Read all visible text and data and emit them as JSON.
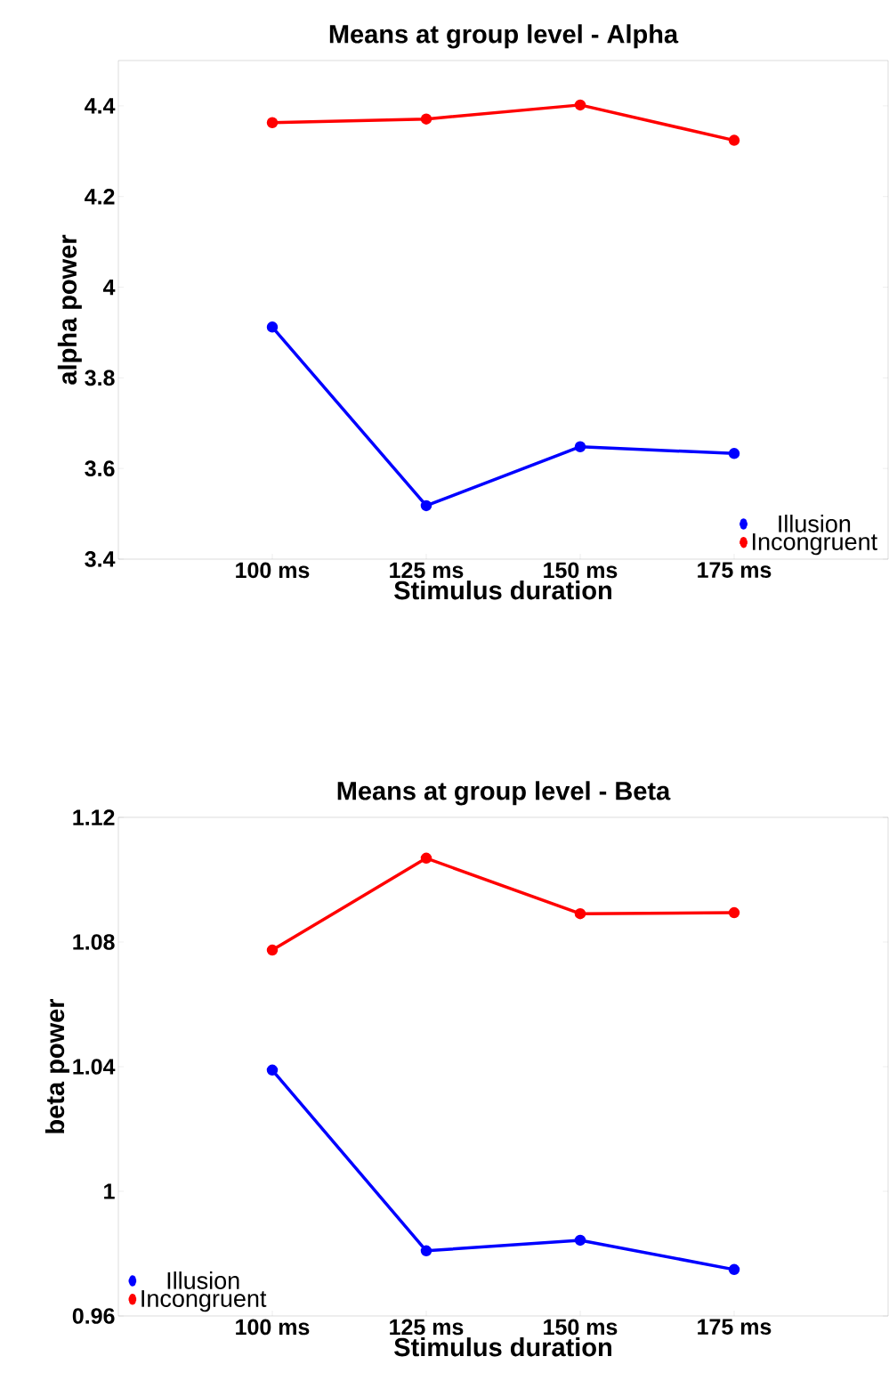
{
  "chart_data": [
    {
      "type": "line",
      "title": "Means at group level - Alpha",
      "xlabel": "Stimulus duration",
      "ylabel": "alpha power",
      "categories": [
        "100 ms",
        "125 ms",
        "150 ms",
        "175 ms"
      ],
      "series": [
        {
          "name": "Illusion",
          "color": "#0000ff",
          "values": [
            3.912,
            3.518,
            3.648,
            3.633
          ]
        },
        {
          "name": "Incongruent",
          "color": "#ff0000",
          "values": [
            4.363,
            4.371,
            4.402,
            4.324
          ]
        }
      ],
      "ylim": [
        3.4,
        4.5
      ],
      "yticks": [
        3.4,
        3.6,
        3.8,
        4,
        4.2,
        4.4
      ],
      "legend": "bottom right",
      "marker": "circle",
      "line_style": "solid"
    },
    {
      "type": "line",
      "title": "Means at group level - Beta",
      "xlabel": "Stimulus duration",
      "ylabel": "beta power",
      "categories": [
        "100 ms",
        "125 ms",
        "150 ms",
        "175 ms"
      ],
      "series": [
        {
          "name": "Illusion",
          "color": "#0000ff",
          "values": [
            1.0389,
            0.9809,
            0.9843,
            0.9749
          ]
        },
        {
          "name": "Incongruent",
          "color": "#ff0000",
          "values": [
            1.0774,
            1.1069,
            1.0891,
            1.0894
          ]
        }
      ],
      "ylim": [
        0.96,
        1.12
      ],
      "yticks": [
        0.96,
        1,
        1.04,
        1.08,
        1.12
      ],
      "legend": "bottom left",
      "marker": "circle",
      "line_style": "solid"
    }
  ]
}
